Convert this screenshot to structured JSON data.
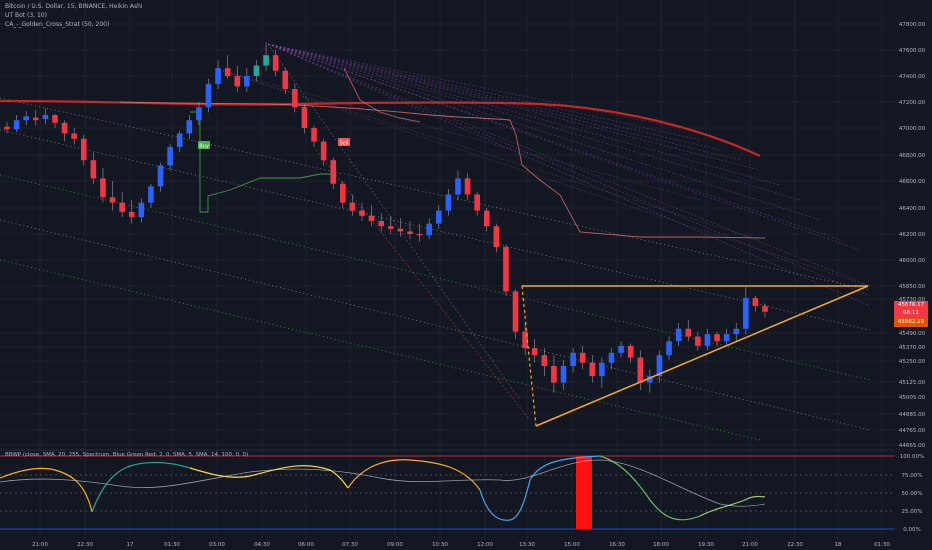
{
  "header": {
    "symbol_line": "Bitcoin / U.S. Dollar, 15, BINANCE, Heikin Ashi",
    "indicator_1": "UT Bot (3, 10)",
    "indicator_2": "CA_-_Golden_Cross_Strat (50, 200)"
  },
  "indicator_pane": {
    "title": "BBWP (close, SMA, 20, 255, Spectrum, Blue Green Red, 2, 0, SMA, 5, SMA, 14, 100, 0, 0)",
    "levels": [
      "100.00%",
      "75.00%",
      "50.00%",
      "25.00%",
      "0.00%"
    ]
  },
  "price_labels": {
    "current_price": "45676.17",
    "countdown": "06:11",
    "lower_label": "45562.29"
  },
  "signals": {
    "buy_label": "Buy",
    "sell_label": "Sell"
  },
  "colors": {
    "background": "#131722",
    "up": "#2962ff",
    "down": "#f23645",
    "buy": "#4caf50",
    "sell": "#ff5252",
    "triangle": "#f9a825",
    "ma_long": "#c62828",
    "grid": "#1e222d"
  },
  "chart_data": {
    "type": "candlestick",
    "title": "Bitcoin / U.S. Dollar, 15, BINANCE, Heikin Ashi",
    "y_ticks": [
      47800,
      47600,
      47400,
      47200,
      47000,
      46800,
      46600,
      46400,
      46200,
      46000,
      45850,
      45730,
      45490,
      45370,
      45250,
      45125,
      45005,
      44885,
      44765,
      44665
    ],
    "x_ticks": [
      "21:00",
      "22:30",
      "17",
      "01:30",
      "03:00",
      "04:30",
      "06:00",
      "07:30",
      "09:00",
      "10:30",
      "12:00",
      "13:30",
      "15:00",
      "16:30",
      "18:00",
      "19:30",
      "21:00",
      "22:30",
      "18",
      "01:30"
    ],
    "ohlc": [
      {
        "t": "20:30",
        "o": 47010,
        "h": 47050,
        "l": 46960,
        "c": 46990
      },
      {
        "t": "20:45",
        "o": 46990,
        "h": 47100,
        "l": 46970,
        "c": 47060
      },
      {
        "t": "21:00",
        "o": 47060,
        "h": 47130,
        "l": 47020,
        "c": 47090
      },
      {
        "t": "21:15",
        "o": 47080,
        "h": 47140,
        "l": 47020,
        "c": 47060
      },
      {
        "t": "21:30",
        "o": 47070,
        "h": 47150,
        "l": 47030,
        "c": 47100
      },
      {
        "t": "21:45",
        "o": 47100,
        "h": 47110,
        "l": 47000,
        "c": 47040
      },
      {
        "t": "22:00",
        "o": 47040,
        "h": 47060,
        "l": 46900,
        "c": 46960
      },
      {
        "t": "22:15",
        "o": 46960,
        "h": 47000,
        "l": 46880,
        "c": 46920
      },
      {
        "t": "22:30",
        "o": 46920,
        "h": 46950,
        "l": 46720,
        "c": 46760
      },
      {
        "t": "22:45",
        "o": 46760,
        "h": 46820,
        "l": 46580,
        "c": 46620
      },
      {
        "t": "23:00",
        "o": 46620,
        "h": 46700,
        "l": 46440,
        "c": 46480
      },
      {
        "t": "23:15",
        "o": 46480,
        "h": 46600,
        "l": 46380,
        "c": 46440
      },
      {
        "t": "23:30",
        "o": 46440,
        "h": 46520,
        "l": 46330,
        "c": 46370
      },
      {
        "t": "23:45",
        "o": 46370,
        "h": 46460,
        "l": 46280,
        "c": 46330
      },
      {
        "t": "00:00",
        "o": 46330,
        "h": 46470,
        "l": 46290,
        "c": 46440
      },
      {
        "t": "00:15",
        "o": 46440,
        "h": 46580,
        "l": 46400,
        "c": 46560
      },
      {
        "t": "00:30",
        "o": 46560,
        "h": 46740,
        "l": 46520,
        "c": 46720
      },
      {
        "t": "00:45",
        "o": 46720,
        "h": 46880,
        "l": 46680,
        "c": 46860
      },
      {
        "t": "01:00",
        "o": 46860,
        "h": 46980,
        "l": 46820,
        "c": 46960
      },
      {
        "t": "01:15",
        "o": 46960,
        "h": 47100,
        "l": 46920,
        "c": 47060
      },
      {
        "t": "01:30",
        "o": 47060,
        "h": 47200,
        "l": 47020,
        "c": 47160
      },
      {
        "t": "01:45",
        "o": 47160,
        "h": 47380,
        "l": 47120,
        "c": 47340
      },
      {
        "t": "02:00",
        "o": 47340,
        "h": 47520,
        "l": 47300,
        "c": 47460
      },
      {
        "t": "02:15",
        "o": 47460,
        "h": 47560,
        "l": 47380,
        "c": 47400
      },
      {
        "t": "02:30",
        "o": 47400,
        "h": 47480,
        "l": 47280,
        "c": 47320
      },
      {
        "t": "02:45",
        "o": 47320,
        "h": 47460,
        "l": 47280,
        "c": 47400
      },
      {
        "t": "03:00",
        "o": 47400,
        "h": 47520,
        "l": 47360,
        "c": 47480
      },
      {
        "t": "03:15",
        "o": 47480,
        "h": 47660,
        "l": 47440,
        "c": 47560
      },
      {
        "t": "03:30",
        "o": 47560,
        "h": 47600,
        "l": 47400,
        "c": 47440
      },
      {
        "t": "03:45",
        "o": 47440,
        "h": 47460,
        "l": 47260,
        "c": 47300
      },
      {
        "t": "04:00",
        "o": 47300,
        "h": 47340,
        "l": 47120,
        "c": 47160
      },
      {
        "t": "04:15",
        "o": 47160,
        "h": 47180,
        "l": 46960,
        "c": 47000
      },
      {
        "t": "04:30",
        "o": 47000,
        "h": 47020,
        "l": 46860,
        "c": 46900
      },
      {
        "t": "04:45",
        "o": 46900,
        "h": 46920,
        "l": 46720,
        "c": 46760
      },
      {
        "t": "05:00",
        "o": 46760,
        "h": 46780,
        "l": 46540,
        "c": 46580
      },
      {
        "t": "05:15",
        "o": 46580,
        "h": 46600,
        "l": 46400,
        "c": 46440
      },
      {
        "t": "05:30",
        "o": 46440,
        "h": 46500,
        "l": 46340,
        "c": 46380
      },
      {
        "t": "05:45",
        "o": 46380,
        "h": 46440,
        "l": 46300,
        "c": 46340
      },
      {
        "t": "06:00",
        "o": 46340,
        "h": 46420,
        "l": 46260,
        "c": 46300
      },
      {
        "t": "06:15",
        "o": 46300,
        "h": 46360,
        "l": 46220,
        "c": 46260
      },
      {
        "t": "06:30",
        "o": 46260,
        "h": 46340,
        "l": 46200,
        "c": 46240
      },
      {
        "t": "06:45",
        "o": 46240,
        "h": 46320,
        "l": 46180,
        "c": 46220
      },
      {
        "t": "07:00",
        "o": 46220,
        "h": 46300,
        "l": 46160,
        "c": 46200
      },
      {
        "t": "07:15",
        "o": 46200,
        "h": 46280,
        "l": 46140,
        "c": 46190
      },
      {
        "t": "07:30",
        "o": 46190,
        "h": 46320,
        "l": 46160,
        "c": 46280
      },
      {
        "t": "07:45",
        "o": 46280,
        "h": 46420,
        "l": 46240,
        "c": 46380
      },
      {
        "t": "08:00",
        "o": 46380,
        "h": 46540,
        "l": 46340,
        "c": 46500
      },
      {
        "t": "08:15",
        "o": 46500,
        "h": 46680,
        "l": 46460,
        "c": 46620
      },
      {
        "t": "08:30",
        "o": 46620,
        "h": 46660,
        "l": 46460,
        "c": 46500
      },
      {
        "t": "08:45",
        "o": 46500,
        "h": 46520,
        "l": 46340,
        "c": 46380
      },
      {
        "t": "09:00",
        "o": 46380,
        "h": 46400,
        "l": 46220,
        "c": 46260
      },
      {
        "t": "09:15",
        "o": 46260,
        "h": 46280,
        "l": 46060,
        "c": 46100
      },
      {
        "t": "09:30",
        "o": 46100,
        "h": 46120,
        "l": 45760,
        "c": 45800
      },
      {
        "t": "09:45",
        "o": 45800,
        "h": 45820,
        "l": 45440,
        "c": 45500
      },
      {
        "t": "10:00",
        "o": 45500,
        "h": 45560,
        "l": 45300,
        "c": 45360
      },
      {
        "t": "10:15",
        "o": 45360,
        "h": 45440,
        "l": 45240,
        "c": 45300
      },
      {
        "t": "10:30",
        "o": 45300,
        "h": 45360,
        "l": 45160,
        "c": 45220
      },
      {
        "t": "10:45",
        "o": 45220,
        "h": 45300,
        "l": 45040,
        "c": 45120
      },
      {
        "t": "11:00",
        "o": 45120,
        "h": 45260,
        "l": 45060,
        "c": 45220
      },
      {
        "t": "11:15",
        "o": 45220,
        "h": 45360,
        "l": 45180,
        "c": 45320
      },
      {
        "t": "11:30",
        "o": 45320,
        "h": 45380,
        "l": 45200,
        "c": 45240
      },
      {
        "t": "11:45",
        "o": 45240,
        "h": 45300,
        "l": 45120,
        "c": 45160
      },
      {
        "t": "12:00",
        "o": 45160,
        "h": 45280,
        "l": 45080,
        "c": 45240
      },
      {
        "t": "12:15",
        "o": 45240,
        "h": 45360,
        "l": 45200,
        "c": 45320
      },
      {
        "t": "12:30",
        "o": 45320,
        "h": 45420,
        "l": 45280,
        "c": 45380
      },
      {
        "t": "12:45",
        "o": 45380,
        "h": 45400,
        "l": 45240,
        "c": 45280
      },
      {
        "t": "13:00",
        "o": 45280,
        "h": 45340,
        "l": 45060,
        "c": 45120
      },
      {
        "t": "13:15",
        "o": 45120,
        "h": 45200,
        "l": 45040,
        "c": 45160
      },
      {
        "t": "13:30",
        "o": 45160,
        "h": 45340,
        "l": 45120,
        "c": 45300
      },
      {
        "t": "13:45",
        "o": 45300,
        "h": 45460,
        "l": 45260,
        "c": 45420
      },
      {
        "t": "14:00",
        "o": 45420,
        "h": 45560,
        "l": 45380,
        "c": 45520
      },
      {
        "t": "14:15",
        "o": 45520,
        "h": 45580,
        "l": 45420,
        "c": 45460
      },
      {
        "t": "14:30",
        "o": 45460,
        "h": 45500,
        "l": 45340,
        "c": 45380
      },
      {
        "t": "14:45",
        "o": 45380,
        "h": 45520,
        "l": 45340,
        "c": 45480
      },
      {
        "t": "15:00",
        "o": 45480,
        "h": 45500,
        "l": 45380,
        "c": 45420
      },
      {
        "t": "15:15",
        "o": 45420,
        "h": 45520,
        "l": 45380,
        "c": 45480
      },
      {
        "t": "15:30",
        "o": 45480,
        "h": 45560,
        "l": 45420,
        "c": 45520
      },
      {
        "t": "15:45",
        "o": 45520,
        "h": 45840,
        "l": 45480,
        "c": 45740
      },
      {
        "t": "16:00",
        "o": 45740,
        "h": 45760,
        "l": 45640,
        "c": 45680
      },
      {
        "t": "16:15",
        "o": 45680,
        "h": 45700,
        "l": 45600,
        "c": 45640
      }
    ]
  }
}
